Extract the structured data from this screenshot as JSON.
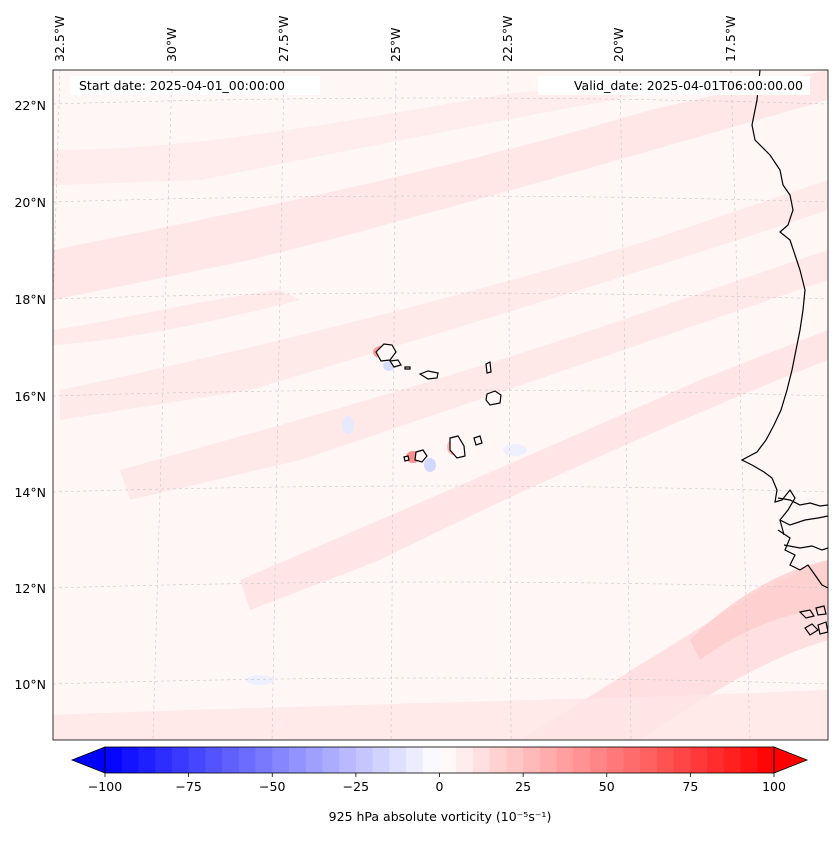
{
  "map": {
    "start_label": "Start date: 2025-04-01_00:00:00",
    "valid_label": "Valid_date: 2025-04-01T06:00:00.00",
    "lat_labels": [
      "22°N",
      "20°N",
      "18°N",
      "16°N",
      "14°N",
      "12°N",
      "10°N"
    ],
    "lon_labels": [
      "32.5°W",
      "30°W",
      "27.5°W",
      "25°W",
      "22.5°W",
      "20°W",
      "17.5°W"
    ],
    "colorbar": {
      "label_html": "925 hPa absolute vorticity (10⁻⁵s⁻¹)",
      "ticks": [
        -100,
        -75,
        -50,
        -25,
        0,
        25,
        50,
        75,
        100
      ],
      "min": -100,
      "max": 100,
      "step": 5,
      "color_low": "#0000ff",
      "color_mid": "#ffffff",
      "color_high": "#ff0000"
    },
    "colors": {
      "background": "#fff6f6",
      "coast": "#000000",
      "grid": "#c8c8c8"
    }
  }
}
